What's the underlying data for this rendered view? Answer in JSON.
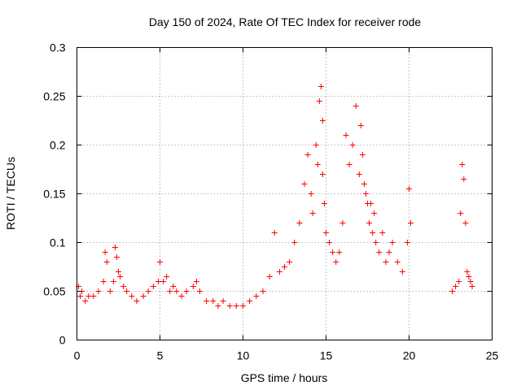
{
  "chart_data": {
    "type": "scatter",
    "title": "Day 150 of 2024, Rate Of TEC Index for receiver rode",
    "xlabel": "GPS time / hours",
    "ylabel": "ROTI / TECUs",
    "xlim": [
      0,
      25
    ],
    "ylim": [
      0,
      0.3
    ],
    "xticks": [
      0,
      5,
      10,
      15,
      20,
      25
    ],
    "yticks": [
      0,
      0.05,
      0.1,
      0.15,
      0.2,
      0.25,
      0.3
    ],
    "xtick_labels": [
      "0",
      "5",
      "10",
      "15",
      "20",
      "25"
    ],
    "ytick_labels": [
      "0",
      "0.05",
      "0.1",
      "0.15",
      "0.2",
      "0.25",
      "0.3"
    ],
    "grid": true,
    "marker": "+",
    "color": "#ff0000",
    "series": [
      {
        "x": [
          0.1,
          0.2,
          0.3,
          0.5,
          0.7,
          1.0,
          1.3,
          1.6,
          1.7,
          1.8,
          2.0,
          2.2,
          2.3,
          2.4,
          2.5,
          2.6,
          2.8,
          3.0,
          3.3,
          3.6,
          4.0,
          4.3,
          4.6,
          4.9,
          5.0,
          5.2,
          5.4,
          5.6,
          5.8,
          6.0,
          6.3,
          6.6,
          7.0,
          7.2,
          7.4,
          7.8,
          8.2,
          8.5,
          8.8,
          9.2,
          9.6,
          10.0,
          10.4,
          10.8,
          11.2,
          11.6,
          11.9,
          12.2,
          12.5,
          12.8,
          13.1,
          13.4,
          13.7,
          13.9,
          14.1,
          14.2,
          14.4,
          14.5,
          14.6,
          14.7,
          14.8,
          14.8,
          14.9,
          15.0,
          15.2,
          15.4,
          15.6,
          15.8,
          16.0,
          16.2,
          16.4,
          16.6,
          16.8,
          17.0,
          17.1,
          17.2,
          17.3,
          17.4,
          17.5,
          17.6,
          17.7,
          17.8,
          17.9,
          18.0,
          18.2,
          18.4,
          18.6,
          18.8,
          19.0,
          19.3,
          19.6,
          19.9,
          20.0,
          20.1,
          22.6,
          22.8,
          23.0,
          23.1,
          23.2,
          23.3,
          23.4,
          23.5,
          23.6,
          23.7,
          23.8
        ],
        "y": [
          0.055,
          0.045,
          0.05,
          0.04,
          0.045,
          0.045,
          0.05,
          0.06,
          0.09,
          0.08,
          0.05,
          0.06,
          0.095,
          0.085,
          0.07,
          0.065,
          0.055,
          0.05,
          0.045,
          0.04,
          0.045,
          0.05,
          0.055,
          0.06,
          0.08,
          0.06,
          0.065,
          0.05,
          0.055,
          0.05,
          0.045,
          0.05,
          0.055,
          0.06,
          0.05,
          0.04,
          0.04,
          0.035,
          0.04,
          0.035,
          0.035,
          0.035,
          0.04,
          0.045,
          0.05,
          0.065,
          0.11,
          0.07,
          0.075,
          0.08,
          0.1,
          0.12,
          0.16,
          0.19,
          0.15,
          0.13,
          0.2,
          0.18,
          0.245,
          0.26,
          0.225,
          0.17,
          0.14,
          0.11,
          0.1,
          0.09,
          0.08,
          0.09,
          0.12,
          0.21,
          0.18,
          0.2,
          0.24,
          0.17,
          0.22,
          0.19,
          0.16,
          0.15,
          0.14,
          0.12,
          0.14,
          0.11,
          0.13,
          0.1,
          0.09,
          0.11,
          0.08,
          0.09,
          0.1,
          0.08,
          0.07,
          0.1,
          0.155,
          0.12,
          0.05,
          0.055,
          0.06,
          0.13,
          0.18,
          0.165,
          0.12,
          0.07,
          0.065,
          0.06,
          0.055
        ]
      }
    ]
  }
}
